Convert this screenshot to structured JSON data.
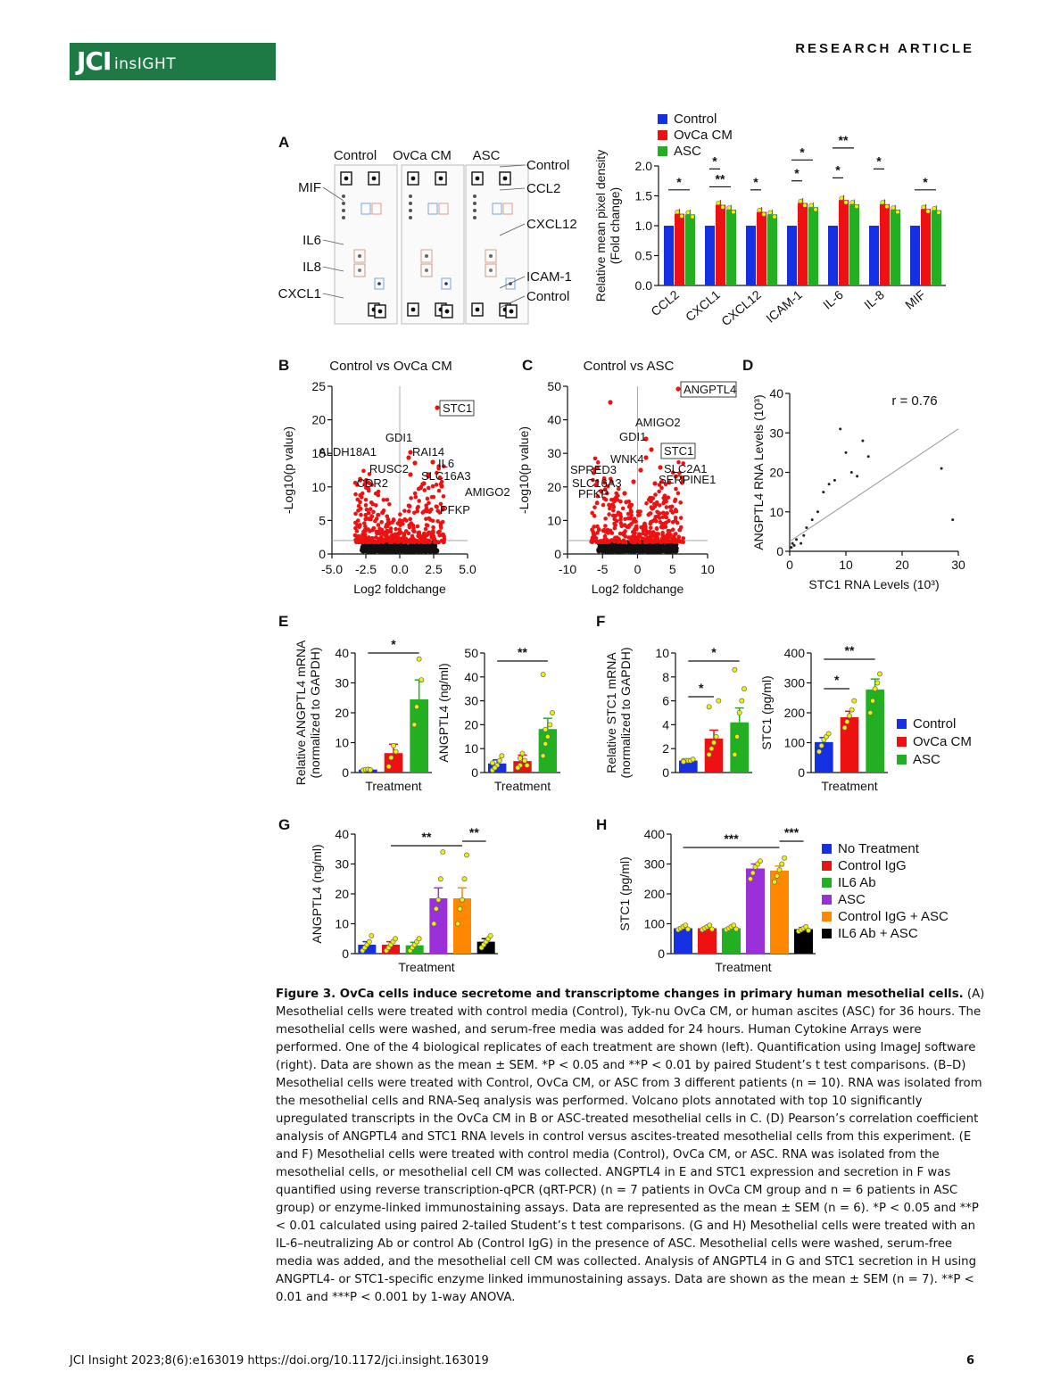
{
  "header": {
    "logo_main": "JCI",
    "logo_sub": "insIGHT",
    "article_type": "RESEARCH ARTICLE"
  },
  "colors": {
    "control": "#1530e0",
    "ovca": "#ee1111",
    "asc": "#22b022",
    "purple": "#9b30d9",
    "orange": "#ff8800",
    "black": "#000000",
    "brand": "#1d7a45"
  },
  "panels": {
    "A": {
      "letter": "A",
      "arrays": [
        "Control",
        "OvCa CM",
        "ASC"
      ],
      "left_labels": [
        "MIF",
        "IL6",
        "IL8",
        "CXCL1"
      ],
      "right_labels": [
        "Control",
        "CCL2",
        "CXCL12",
        "ICAM-1",
        "Control"
      ]
    },
    "B": {
      "letter": "B",
      "title": "Control vs OvCa CM"
    },
    "C": {
      "letter": "C",
      "title": "Control vs ASC"
    },
    "D": {
      "letter": "D"
    },
    "E": {
      "letter": "E"
    },
    "F": {
      "letter": "F"
    },
    "G": {
      "letter": "G"
    },
    "H": {
      "letter": "H"
    }
  },
  "chart_data": [
    {
      "id": "A_bar",
      "type": "bar",
      "ylabel": "Relative mean pixel density (Fold change)",
      "ylim": [
        0,
        2.0
      ],
      "yticks": [
        "0.0",
        "0.5",
        "1.0",
        "1.5",
        "2.0"
      ],
      "categories": [
        "CCL2",
        "CXCL1",
        "CXCL12",
        "ICAM-1",
        "IL-6",
        "IL-8",
        "MIF"
      ],
      "series": [
        {
          "name": "Control",
          "values": [
            1.0,
            1.0,
            1.0,
            1.0,
            1.0,
            1.0,
            1.0
          ]
        },
        {
          "name": "OvCa CM",
          "values": [
            1.2,
            1.35,
            1.23,
            1.38,
            1.43,
            1.36,
            1.28
          ]
        },
        {
          "name": "ASC",
          "values": [
            1.19,
            1.27,
            1.19,
            1.31,
            1.36,
            1.27,
            1.26
          ]
        }
      ],
      "significance": [
        "*",
        "*",
        "**",
        "*",
        "*",
        "*",
        "*",
        "*",
        "**",
        "*",
        "*"
      ]
    },
    {
      "id": "B_volcano",
      "type": "scatter",
      "title": "Control vs OvCa CM",
      "xlabel": "Log2 foldchange",
      "ylabel": "-Log10(p value)",
      "xlim": [
        -5.0,
        5.0
      ],
      "ylim": [
        0,
        25
      ],
      "xticks": [
        "-5.0",
        "-2.5",
        "0.0",
        "2.5",
        "5.0"
      ],
      "yticks": [
        "0",
        "5",
        "10",
        "15",
        "20",
        "25"
      ],
      "labels": [
        "STC1",
        "GDI1",
        "ALDH18A1",
        "RAI14",
        "IL6",
        "RUSC2",
        "SLC16A3",
        "CDR2",
        "AMIGO2",
        "PFKP"
      ]
    },
    {
      "id": "C_volcano",
      "type": "scatter",
      "title": "Control vs ASC",
      "xlabel": "Log2 foldchange",
      "ylabel": "-Log10(p value)",
      "xlim": [
        -10,
        10
      ],
      "ylim": [
        0,
        50
      ],
      "xticks": [
        "-10",
        "-5",
        "0",
        "5",
        "10"
      ],
      "yticks": [
        "0",
        "10",
        "20",
        "30",
        "40",
        "50"
      ],
      "labels": [
        "ANGPTL4",
        "AMIGO2",
        "GDI1",
        "STC1",
        "WNK4",
        "SPRED3",
        "SLC2A1",
        "SLC16A3",
        "SERPINE1",
        "PFKP"
      ]
    },
    {
      "id": "D_scatter",
      "type": "scatter",
      "xlabel": "STC1 RNA Levels (10³)",
      "ylabel": "ANGPTL4 RNA Levels (10³)",
      "xlim": [
        0,
        30
      ],
      "ylim": [
        0,
        40
      ],
      "xticks": [
        "0",
        "10",
        "20",
        "30"
      ],
      "yticks": [
        "0",
        "10",
        "20",
        "30",
        "40"
      ],
      "annotation": "r = 0.76",
      "x": [
        0.3,
        0.5,
        0.8,
        1.2,
        2,
        2.5,
        3,
        4,
        5,
        6,
        7,
        8,
        9,
        10,
        11,
        12,
        13,
        14,
        27,
        29
      ],
      "y": [
        1,
        2,
        1.5,
        3,
        2,
        4,
        6,
        8,
        10,
        15,
        17,
        18,
        31,
        25,
        20,
        19,
        28,
        24,
        21,
        8
      ]
    },
    {
      "id": "E1",
      "type": "bar",
      "ylabel": "Relative ANGPTL4 mRNA (normalized to GAPDH)",
      "xlabel": "Treatment",
      "ylim": [
        0,
        40
      ],
      "yticks": [
        "0",
        "10",
        "20",
        "30",
        "40"
      ],
      "values": [
        1,
        6.5,
        24.5
      ],
      "errors": [
        0.2,
        3,
        6.5
      ],
      "significance": [
        "*"
      ]
    },
    {
      "id": "E2",
      "type": "bar",
      "ylabel": "ANGPTL4 (ng/ml)",
      "xlabel": "Treatment",
      "ylim": [
        0,
        50
      ],
      "yticks": [
        "0",
        "10",
        "20",
        "30",
        "40",
        "50"
      ],
      "values": [
        3.8,
        4.8,
        18.2
      ],
      "errors": [
        1.5,
        2.5,
        4.5
      ],
      "significance": [
        "**"
      ]
    },
    {
      "id": "F1",
      "type": "bar",
      "ylabel": "Relative STC1 mRNA (normalized to GAPDH)",
      "xlabel": "",
      "ylim": [
        0,
        10
      ],
      "yticks": [
        "0",
        "2",
        "4",
        "6",
        "8",
        "10"
      ],
      "values": [
        1.0,
        2.85,
        4.2
      ],
      "errors": [
        0.1,
        0.7,
        1.2
      ],
      "significance": [
        "*",
        "*"
      ]
    },
    {
      "id": "F2",
      "type": "bar",
      "ylabel": "STC1 (pg/ml)",
      "xlabel": "Treatment",
      "ylim": [
        0,
        400
      ],
      "yticks": [
        "0",
        "100",
        "200",
        "300",
        "400"
      ],
      "values": [
        102,
        185,
        278
      ],
      "errors": [
        15,
        20,
        35
      ],
      "significance": [
        "*",
        "**"
      ],
      "legend": [
        "Control",
        "OvCa CM",
        "ASC"
      ]
    },
    {
      "id": "G",
      "type": "bar",
      "ylabel": "ANGPTL4 (ng/ml)",
      "xlabel": "Treatment",
      "ylim": [
        0,
        40
      ],
      "yticks": [
        "0",
        "10",
        "20",
        "30",
        "40"
      ],
      "values": [
        3.0,
        3.0,
        2.8,
        18.5,
        18.5,
        4.0
      ],
      "errors": [
        1,
        1,
        1,
        3.5,
        3.5,
        1
      ],
      "significance": [
        "**",
        "**"
      ]
    },
    {
      "id": "H",
      "type": "bar",
      "ylabel": "STC1 (pg/ml)",
      "xlabel": "Treatment",
      "ylim": [
        0,
        400
      ],
      "yticks": [
        "0",
        "100",
        "200",
        "300",
        "400"
      ],
      "values": [
        85,
        85,
        85,
        285,
        278,
        82
      ],
      "errors": [
        5,
        5,
        5,
        15,
        15,
        5
      ],
      "significance": [
        "***",
        "***"
      ],
      "legend": [
        "No Treatment",
        "Control IgG",
        "IL6 Ab",
        "ASC",
        "Control IgG + ASC",
        "IL6 Ab + ASC"
      ]
    }
  ],
  "caption": {
    "title": "Figure 3. OvCa cells induce secretome and transcriptome changes in primary human mesothelial cells.",
    "body": "(A) Mesothelial cells were treated with control media (Control), Tyk-nu OvCa CM, or human ascites (ASC) for 36 hours. The mesothelial cells were washed, and serum-free media was added for 24 hours. Human Cytokine Arrays were performed. One of the 4 biological replicates of each treatment are shown (left). Quantification using ImageJ software (right). Data are shown as the mean ± SEM. *P < 0.05 and **P < 0.01 by paired Student’s t test comparisons. (B–D) Mesothelial cells were treated with Control, OvCa CM, or ASC from 3 different patients (n = 10). RNA was isolated from the mesothelial cells and RNA-Seq analysis was performed. Volcano plots annotated with top 10 significantly upregulated transcripts in the OvCa CM in B or ASC-treated mesothelial cells in C. (D) Pearson’s correlation coefficient analysis of ANGPTL4 and STC1 RNA levels in control versus ascites-treated mesothelial cells from this experiment. (E and F) Mesothelial cells were treated with control media (Control), OvCa CM, or ASC. RNA was isolated from the mesothelial cells, or mesothelial cell CM was collected. ANGPTL4 in E and STC1 expression and secretion in F was quantified using reverse transcription-qPCR (qRT-PCR) (n = 7 patients in OvCa CM group and n = 6 patients in ASC group) or enzyme-linked immunostaining assays. Data are represented as the mean ± SEM (n = 6). *P < 0.05 and **P < 0.01 calculated using paired 2-tailed Student’s t test comparisons. (G and H) Mesothelial cells were treated with an IL-6–neutralizing Ab or control Ab (Control IgG) in the presence of ASC. Mesothelial cells were washed, serum-free media was added, and the mesothelial cell CM was collected. Analysis of ANGPTL4 in G and STC1 secretion in H using ANGPTL4- or STC1-specific enzyme linked immunostaining assays. Data are shown as the mean ± SEM (n = 7). **P < 0.01 and ***P < 0.001 by 1-way ANOVA."
  },
  "footer": {
    "citation": "JCI Insight 2023;8(6):e163019  https://doi.org/10.1172/jci.insight.163019",
    "page": "6"
  }
}
